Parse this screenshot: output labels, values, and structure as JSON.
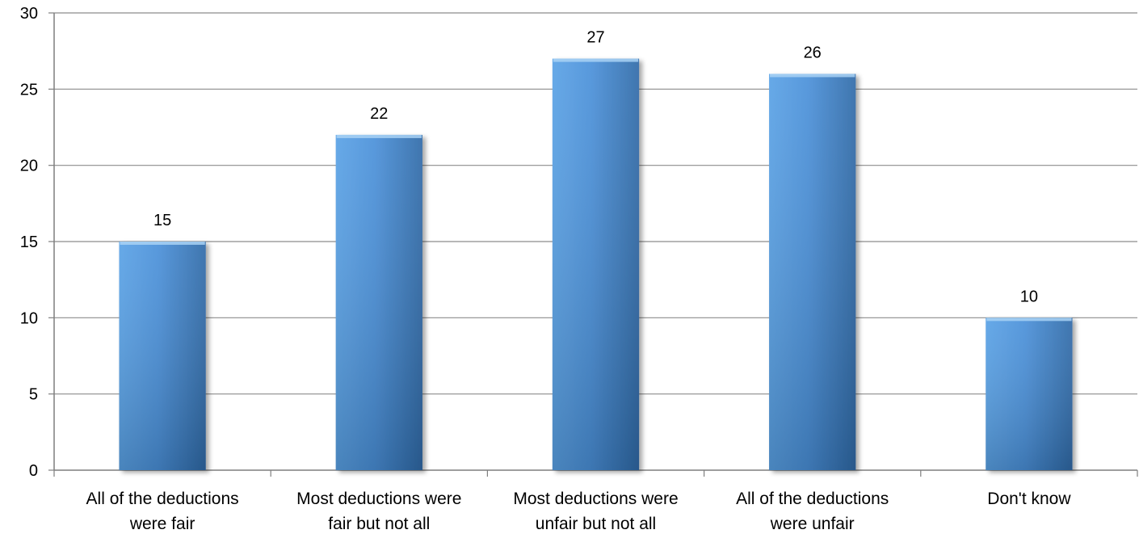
{
  "chart_data": {
    "type": "bar",
    "categories": [
      [
        "All of the deductions",
        "were fair"
      ],
      [
        "Most deductions were",
        "fair but not all"
      ],
      [
        "Most deductions were",
        "unfair but not all"
      ],
      [
        "All of the deductions",
        "were unfair"
      ],
      [
        "Don't know"
      ]
    ],
    "values": [
      15,
      22,
      27,
      26,
      10
    ],
    "data_labels": [
      "15",
      "22",
      "27",
      "26",
      "10"
    ],
    "ylim": [
      0,
      30
    ],
    "yticks": [
      0,
      5,
      10,
      15,
      20,
      25,
      30
    ],
    "grid": true,
    "legend": "none",
    "colors": {
      "bar_light": "#5aa2e6",
      "bar_mid": "#4a90d9",
      "bar_dark": "#2f6aa8",
      "gridline": "#8c8c8c",
      "axis": "#7f7f7f"
    }
  }
}
